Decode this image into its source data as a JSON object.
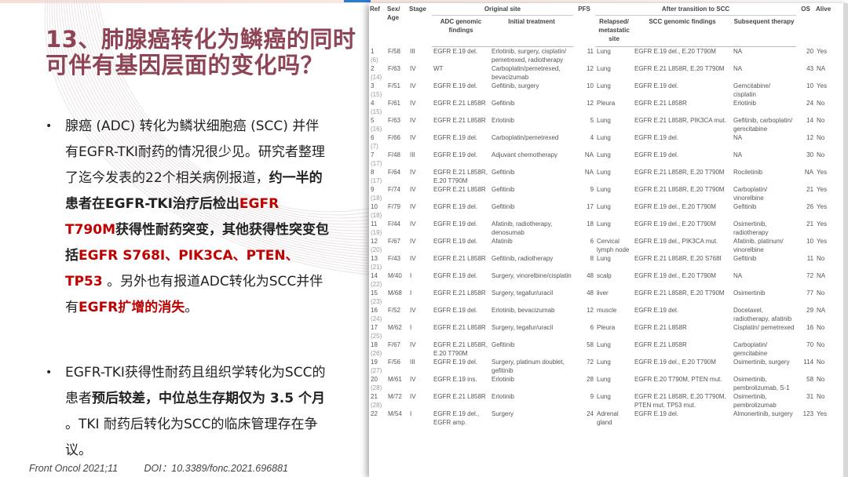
{
  "title": "13、肺腺癌转化为鳞癌的同时可伴有基因层面的变化吗？",
  "bullets": [
    {
      "segments": [
        {
          "text": "腺癌 (ADC) 转化为鳞状细胞癌 (SCC) 并伴有EGFR-TKI耐药的情况很少见。研究者整理了迄今发表的22个相关病例报道，",
          "style": "normal"
        },
        {
          "text": "约一半的患者在EGFR-TKI治疗后检出",
          "style": "bold"
        },
        {
          "text": "EGFR T790M",
          "style": "red"
        },
        {
          "text": "获得性耐药突变，其他获得性突变包括",
          "style": "bold"
        },
        {
          "text": "EGFR S768I、PIK3CA、PTEN、TP53",
          "style": "red"
        },
        {
          "text": " 。另外也有报道ADC转化为SCC并伴有",
          "style": "normal"
        },
        {
          "text": "EGFR扩增的消失",
          "style": "red"
        },
        {
          "text": "。",
          "style": "normal"
        }
      ]
    },
    {
      "segments": [
        {
          "text": "EGFR-TKI获得性耐药且组织学转化为SCC的患者",
          "style": "normal"
        },
        {
          "text": "预后较差，中位总生存期仅为 3.5 个月",
          "style": "bold"
        },
        {
          "text": " 。TKI 耐药后转化为SCC的临床管理存在争议。",
          "style": "normal"
        }
      ]
    }
  ],
  "bullet_glyph": "•",
  "footer": {
    "journal": "Front Oncol 2021;11",
    "doi": "DOI：10.3389/fonc.2021.696881"
  },
  "colors": {
    "title": "#8e4454",
    "highlight": "#c00000",
    "accent_bar": "#2a7bd4"
  },
  "table": {
    "headers": {
      "ref": "Ref",
      "sex_age": "Sex/ Age",
      "stage": "Stage",
      "original_site": "Original site",
      "pfs": "PFS",
      "after": "After transition to SCC",
      "os": "OS",
      "alive": "Alive",
      "adc": "ADC genomic findings",
      "initial": "Initial treatment",
      "relapsed": "Relapsed/ metastatic site",
      "scc": "SCC genomic findings",
      "subsequent": "Subsequent therapy"
    },
    "rows": [
      [
        "1",
        "(6)",
        "F/58",
        "III",
        "EGFR E.19 del.",
        "Erlotinib, surgery, cisplatin/ pemetrexed, radiotherapy",
        "11",
        "Lung",
        "EGFR E.19 del., E.20 T790M",
        "NA",
        "20",
        "Yes"
      ],
      [
        "2",
        "(14)",
        "F/63",
        "IV",
        "WT",
        "Carboplatin/pemetrexed, bevacizumab",
        "12",
        "Lung",
        "EGFR E.21 L858R, E.20 T790M",
        "NA",
        "43",
        "NA"
      ],
      [
        "3",
        "(15)",
        "F/51",
        "IV",
        "EGFR E.19 del.",
        "Gefitinib, surgery",
        "10",
        "Lung",
        "EGFR E.19 del.",
        "Gemcitabine/ cisplatin",
        "10",
        "Yes"
      ],
      [
        "4",
        "(15)",
        "F/61",
        "IV",
        "EGFR E.21 L858R",
        "Gefitinib",
        "12",
        "Pleura",
        "EGFR E.21 L858R",
        "Erlotinib",
        "24",
        "No"
      ],
      [
        "5",
        "(16)",
        "F/63",
        "IV",
        "EGFR E.21 L858R",
        "Erlotinib",
        "5",
        "Lung",
        "EGFR E.21 L858R, PIK3CA mut.",
        "Gefitinib, carboplatin/ gemcitabine",
        "14",
        "No"
      ],
      [
        "6",
        "(7)",
        "F/66",
        "IV",
        "EGFR E.19 del.",
        "Carboplatin/pemetrexed",
        "4",
        "Lung",
        "EGFR E.19 del.",
        "NA",
        "12",
        "No"
      ],
      [
        "7",
        "(17)",
        "F/48",
        "III",
        "EGFR E.19 del.",
        "Adjuvant chemotherapy",
        "NA",
        "Lung",
        "EGFR E.19 del.",
        "NA",
        "30",
        "No"
      ],
      [
        "8",
        "(17)",
        "F/64",
        "IV",
        "EGFR E.21 L858R, E.20 T790M",
        "Gefitinib",
        "NA",
        "Lung",
        "EGFR E.21 L858R, E.20 T790M",
        "Rociletinib",
        "NA",
        "Yes"
      ],
      [
        "9",
        "(18)",
        "F/74",
        "IV",
        "EGFR E.21 L858R",
        "Gefitinib",
        "9",
        "Lung",
        "EGFR E.21 L858R, E.20 T790M",
        "Carboplatin/ vinorelbine",
        "21",
        "Yes"
      ],
      [
        "10",
        "(18)",
        "F/79",
        "IV",
        "EGFR E.19 del.",
        "Gefitinib",
        "17",
        "Lung",
        "EGFR E.19 del., E.20 T790M",
        "Gefitinib",
        "26",
        "Yes"
      ],
      [
        "11",
        "(19)",
        "F/44",
        "IV",
        "EGFR E.19 del.",
        "Afatinib, radiotherapy, denosumab",
        "18",
        "Lung",
        "EGFR E.19 del., E.20 T790M",
        "Osimertinib, radiotherapy",
        "21",
        "Yes"
      ],
      [
        "12",
        "(20)",
        "F/67",
        "IV",
        "EGFR E.19 del.",
        "Afatinib",
        "6",
        "Cervical lymph node",
        "EGFR E.19 del., PIK3CA mut.",
        "Afatinib, platinum/ vinorelbine",
        "10",
        "Yes"
      ],
      [
        "13",
        "(21)",
        "F/43",
        "IV",
        "EGFR E.21 L858R",
        "Gefitinib, radiotherapy",
        "8",
        "Lung",
        "EGFR E.21 L858R, E.20 S768I",
        "Gefitinib",
        "11",
        "No"
      ],
      [
        "14",
        "(22)",
        "M/40",
        "I",
        "EGFR E.19 del.",
        "Surgery, vinorelbine/cisplatin",
        "48",
        "scalp",
        "EGFR E.19 del., E.20 T790M",
        "NA",
        "72",
        "NA"
      ],
      [
        "15",
        "(23)",
        "M/68",
        "I",
        "EGFR E.21 L858R",
        "Surgery, tegafur/uracil",
        "48",
        "liver",
        "EGFR E.21 L858R, E.20 T790M",
        "Osimertinib",
        "77",
        "No"
      ],
      [
        "16",
        "(24)",
        "F/52",
        "IV",
        "EGFR E.19 del.",
        "Erlotinib, bevacizumab",
        "12",
        "muscle",
        "EGFR E.19 del.",
        "Docetaxel, radiotherapy, afatinib",
        "29",
        "NA"
      ],
      [
        "17",
        "(25)",
        "M/62",
        "I",
        "EGFR E.21 L858R",
        "Surgery, tegafur/uracil",
        "6",
        "Pleura",
        "EGFR E.21 L858R",
        "Cisplatin/ pemetrexed",
        "16",
        "No"
      ],
      [
        "18",
        "(26)",
        "F/67",
        "IV",
        "EGFR E.21 L858R, E.20 T790M",
        "Gefitinib",
        "58",
        "Lung",
        "EGFR E.21 L858R",
        "Carboplatin/ gemcitabine",
        "70",
        "No"
      ],
      [
        "19",
        "(27)",
        "F/56",
        "III",
        "EGFR E.19 del.",
        "Surgery, platinum doublet, gefitinib",
        "72",
        "Lung",
        "EGFR E.19 del., E.20 T790M",
        "Osimertinib, surgery",
        "114",
        "No"
      ],
      [
        "20",
        "(28)",
        "M/61",
        "IV",
        "EGFR E.19 ins.",
        "Erlotinib",
        "28",
        "Lung",
        "EGFR E.20 T790M, PTEN mut.",
        "Osimertinib, pembrolizumab, S-1",
        "58",
        "No"
      ],
      [
        "21",
        "(28)",
        "M/72",
        "IV",
        "EGFR E.21 L858R",
        "Erlotinib",
        "9",
        "Lung",
        "EGFR E.21 L858R, E.20 T790M, PTEN mut. TP53 mut.",
        "Osimertinib, pembrolizumab",
        "31",
        "No"
      ],
      [
        "22",
        "",
        "M/54",
        "I",
        "EGFR E.19 del., EGFR amp.",
        "Surgery",
        "24",
        "Adrenal gland",
        "EGFR E.19 del.",
        "Almonertinib, surgery",
        "123",
        "Yes"
      ]
    ]
  }
}
